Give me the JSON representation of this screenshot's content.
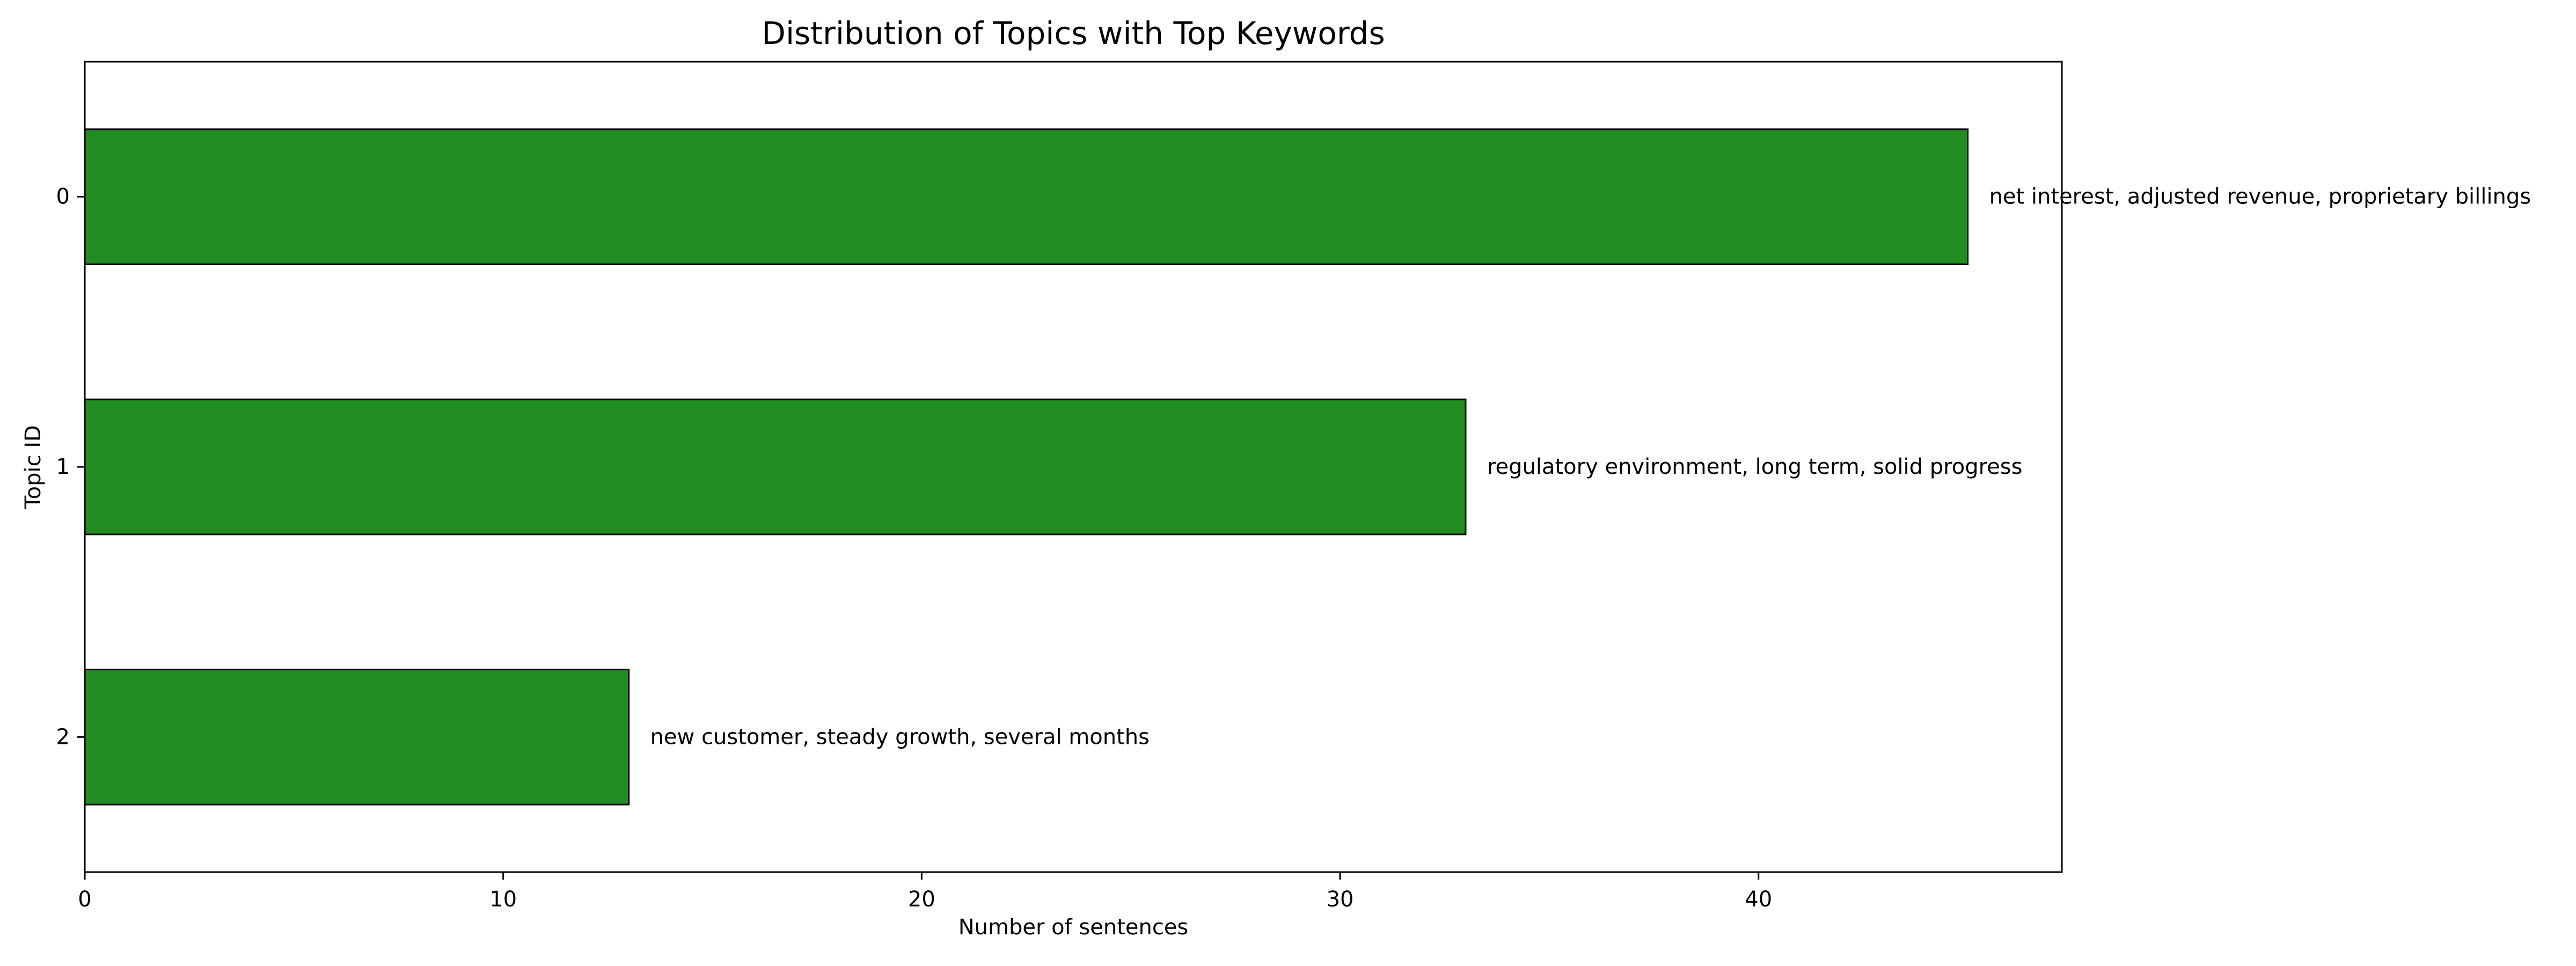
{
  "chart_data": {
    "type": "bar",
    "orientation": "horizontal",
    "title": "Distribution of Topics with Top Keywords",
    "xlabel": "Number of sentences",
    "ylabel": "Topic ID",
    "categories": [
      "0",
      "1",
      "2"
    ],
    "values": [
      45,
      33,
      13
    ],
    "annotations": [
      "net interest, adjusted revenue, proprietary billings",
      "regulatory environment, long term, solid progress",
      "new customer, steady growth, several months"
    ],
    "xlim": [
      0,
      47.25
    ],
    "xticks": [
      0,
      10,
      20,
      30,
      40
    ],
    "grid": false,
    "bar_color": "#228b22",
    "edge_color": "#000000"
  }
}
